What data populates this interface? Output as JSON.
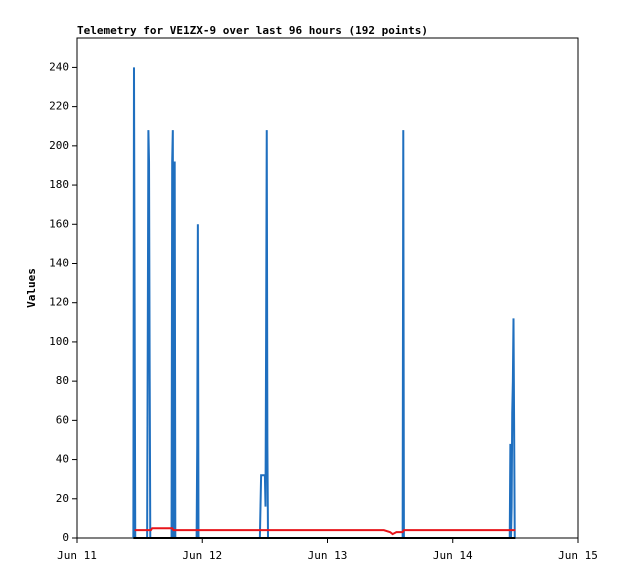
{
  "chart_data": {
    "type": "line",
    "title": "Telemetry for VE1ZX-9 over last 96 hours (192 points)",
    "y_label": "Values",
    "xlim": [
      0,
      4
    ],
    "xticks": [
      {
        "value": 0,
        "label": "Jun 11"
      },
      {
        "value": 1,
        "label": "Jun 12"
      },
      {
        "value": 2,
        "label": "Jun 13"
      },
      {
        "value": 3,
        "label": "Jun 14"
      },
      {
        "value": 4,
        "label": "Jun 15"
      }
    ],
    "ylim": [
      0,
      255
    ],
    "yticks": [
      0,
      20,
      40,
      60,
      80,
      100,
      120,
      140,
      160,
      180,
      200,
      220,
      240
    ],
    "grid": false,
    "series": [
      {
        "color": "#1f6fbf",
        "x": [
          0.45,
          0.455,
          0.46,
          0.465,
          0.56,
          0.565,
          0.57,
          0.575,
          0.58,
          0.585,
          0.755,
          0.76,
          0.765,
          0.77,
          0.775,
          0.78,
          0.785,
          0.955,
          0.96,
          0.965,
          0.97,
          1.46,
          1.465,
          1.47,
          1.5,
          1.505,
          1.51,
          1.515,
          1.52,
          1.525,
          2.6,
          2.605,
          2.61,
          3.455,
          3.46,
          3.465,
          3.47,
          3.475,
          3.48,
          3.485,
          3.49,
          3.495
        ],
        "values": [
          0,
          240,
          120,
          0,
          0,
          104,
          208,
          192,
          88,
          0,
          0,
          192,
          208,
          0,
          144,
          192,
          0,
          0,
          48,
          160,
          0,
          0,
          16,
          32,
          32,
          16,
          104,
          208,
          48,
          0,
          0,
          208,
          0,
          0,
          48,
          0,
          16,
          64,
          80,
          112,
          56,
          0
        ]
      },
      {
        "color": "#e8141a",
        "x": [
          0.46,
          0.59,
          0.6,
          0.76,
          0.77,
          2.45,
          2.5,
          2.52,
          2.55,
          2.6,
          2.61,
          3.5
        ],
        "values": [
          4,
          4,
          5,
          5,
          4,
          4,
          3,
          2,
          3,
          3,
          4,
          4
        ]
      },
      {
        "color": "#000000",
        "x": [
          0.45,
          3.5
        ],
        "values": [
          0,
          0
        ]
      }
    ]
  }
}
